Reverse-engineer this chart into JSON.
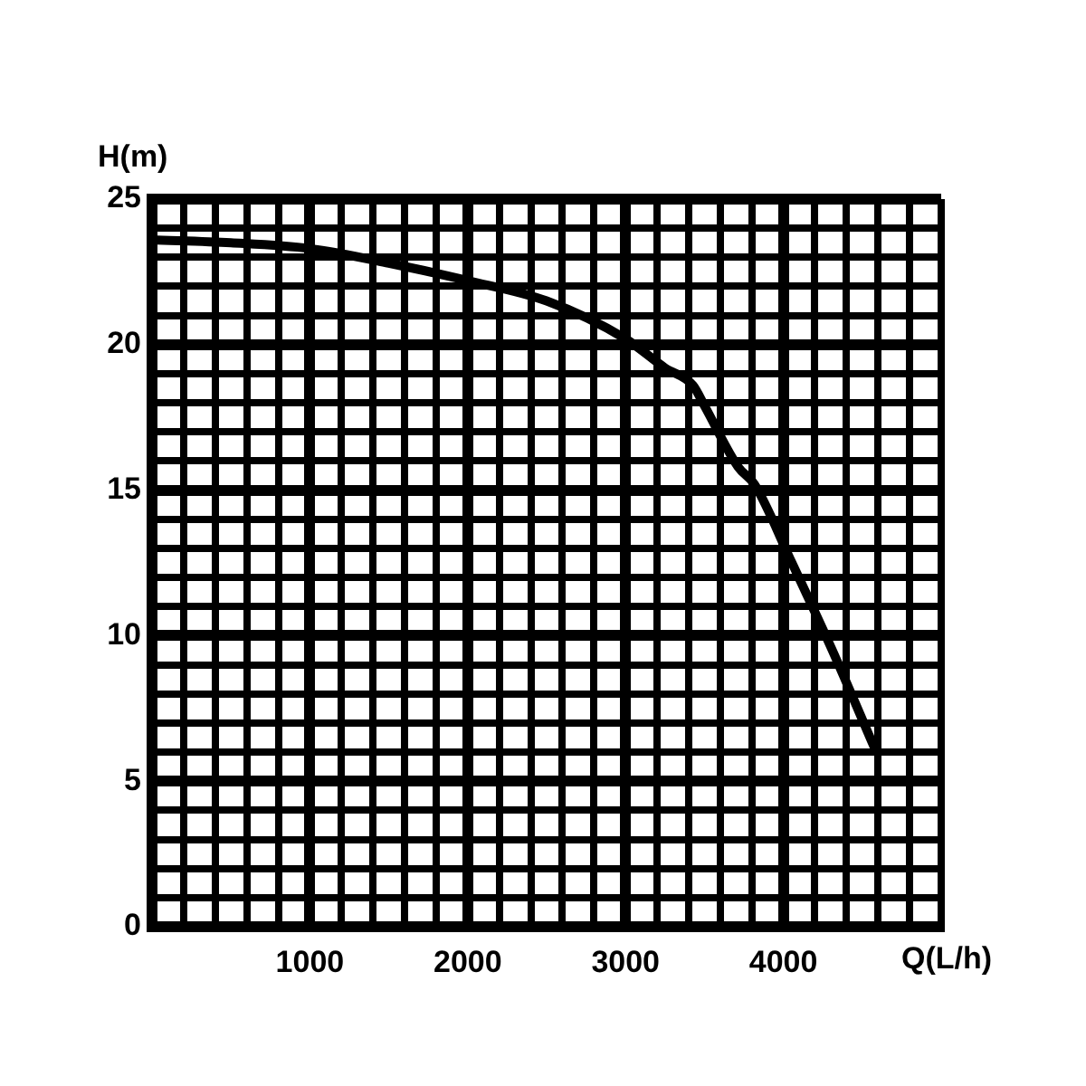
{
  "chart_data": {
    "type": "line",
    "xlabel": "Q(L/h)",
    "ylabel": "H(m)",
    "x": [
      0,
      500,
      1000,
      1500,
      2000,
      2500,
      3000,
      3250,
      3427,
      3500,
      3713,
      3817,
      4046,
      4310,
      4573
    ],
    "series": [
      {
        "color": "#000000",
        "values": [
          23.6,
          23.5,
          23.3,
          22.8,
          22.2,
          21.5,
          20.2,
          19.2,
          18.6,
          17.9,
          15.8,
          15.2,
          12.6,
          9.5,
          6.2
        ]
      }
    ],
    "xlim": [
      0,
      5000
    ],
    "ylim": [
      0,
      25
    ],
    "xticks": [
      {
        "value": 0,
        "label": null
      },
      {
        "value": 200,
        "label": null
      },
      {
        "value": 400,
        "label": null
      },
      {
        "value": 600,
        "label": null
      },
      {
        "value": 800,
        "label": null
      },
      1000,
      {
        "value": 1200,
        "label": null
      },
      {
        "value": 1400,
        "label": null
      },
      {
        "value": 1600,
        "label": null
      },
      {
        "value": 1800,
        "label": null
      },
      2000,
      {
        "value": 2200,
        "label": null
      },
      {
        "value": 2400,
        "label": null
      },
      {
        "value": 2600,
        "label": null
      },
      {
        "value": 2800,
        "label": null
      },
      3000,
      {
        "value": 3200,
        "label": null
      },
      {
        "value": 3400,
        "label": null
      },
      {
        "value": 3600,
        "label": null
      },
      {
        "value": 3800,
        "label": null
      },
      4000,
      {
        "value": 4200,
        "label": null
      },
      {
        "value": 4400,
        "label": null
      },
      {
        "value": 4600,
        "label": null
      },
      {
        "value": 4800,
        "label": null
      },
      {
        "value": 5000,
        "label": null
      }
    ],
    "yticks": [
      0,
      {
        "value": 1,
        "label": null
      },
      {
        "value": 2,
        "label": null
      },
      {
        "value": 3,
        "label": null
      },
      {
        "value": 4,
        "label": null
      },
      5,
      {
        "value": 6,
        "label": null
      },
      {
        "value": 7,
        "label": null
      },
      {
        "value": 8,
        "label": null
      },
      {
        "value": 9,
        "label": null
      },
      10,
      {
        "value": 11,
        "label": null
      },
      {
        "value": 12,
        "label": null
      },
      {
        "value": 13,
        "label": null
      },
      {
        "value": 14,
        "label": null
      },
      15,
      {
        "value": 16,
        "label": null
      },
      {
        "value": 17,
        "label": null
      },
      {
        "value": 18,
        "label": null
      },
      {
        "value": 19,
        "label": null
      },
      20,
      {
        "value": 21,
        "label": null
      },
      {
        "value": 22,
        "label": null
      },
      {
        "value": 23,
        "label": null
      },
      {
        "value": 24,
        "label": null
      },
      25
    ],
    "grid": true,
    "legend": false,
    "marker": "none",
    "line_style": "solid"
  }
}
